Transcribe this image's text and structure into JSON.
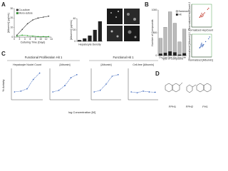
{
  "panel_labels": [
    "A",
    "B",
    "C",
    "D"
  ],
  "chart_data": [
    {
      "type": "line",
      "xlabel": "Culturing Time (Days)",
      "ylabel": "[Albumin] (μg/mL)",
      "x": [
        1,
        3,
        5,
        7,
        9,
        11,
        13
      ],
      "xlim": [
        0,
        14
      ],
      "xticks": [
        0,
        2,
        4,
        6,
        8,
        10,
        12,
        14
      ],
      "ylim": [
        0,
        30
      ],
      "yticks": [
        0,
        10,
        20,
        30
      ],
      "series": [
        {
          "name": "Co-culture",
          "color": "#333333",
          "values": [
            2,
            8,
            14,
            18,
            20,
            21,
            22
          ]
        },
        {
          "name": "Mono-culture",
          "color": "#2ca02c",
          "values": [
            1,
            2,
            1.5,
            1,
            0.5,
            0.5,
            0.5
          ]
        }
      ]
    },
    {
      "type": "bar",
      "xlabel": "Hepatocyte Density",
      "ylabel": "[Albumin] (μg/mL)",
      "categories": [
        null,
        null,
        null,
        null,
        null
      ],
      "values": [
        2,
        5,
        10,
        20,
        35
      ],
      "color": "#222222",
      "ylim": [
        0,
        40
      ],
      "yticks": [
        0,
        20,
        40
      ]
    },
    {
      "type": "bar",
      "xlabel": "Type of Compound",
      "ylabel": "Number of Compounds",
      "categories": [
        "Chr",
        "Com",
        "Dive",
        "Kin",
        "Kno",
        "Nat"
      ],
      "series": [
        {
          "name": "Screened",
          "color": "#bbbbbb",
          "values": [
            380,
            620,
            960,
            710,
            300,
            580
          ]
        },
        {
          "name": "Hit",
          "color": "#222222",
          "values": [
            40,
            60,
            90,
            70,
            20,
            50
          ]
        }
      ],
      "ylim": [
        0,
        1000
      ],
      "yticks": [
        0,
        500,
        1000
      ]
    },
    {
      "type": "scatter",
      "xlabel": "Normalized HepCount 1",
      "ylabel": "Normalized HepCount 2",
      "x": [
        0.9,
        1.0,
        1.1,
        0.95,
        1.05,
        0.85,
        1.2,
        1.0,
        0.8,
        1.15,
        1.3,
        1.6,
        1.7
      ],
      "values": [
        1.0,
        0.9,
        1.1,
        1.05,
        0.95,
        0.9,
        1.15,
        1.2,
        0.85,
        1.0,
        1.25,
        1.55,
        1.65
      ],
      "color": "#c0392b",
      "xlim": [
        0,
        2
      ],
      "ylim": [
        0,
        2
      ]
    },
    {
      "type": "scatter",
      "xlabel": "Normalized [Albumin] 1",
      "ylabel": "Normalized [Albumin] 2",
      "x": [
        0.9,
        1.0,
        1.1,
        0.95,
        1.05,
        0.85,
        1.2,
        1.0,
        0.8,
        1.15,
        1.4,
        1.7,
        1.8
      ],
      "values": [
        0.95,
        1.0,
        1.05,
        1.1,
        0.9,
        0.85,
        1.1,
        1.2,
        0.8,
        1.0,
        1.35,
        1.6,
        1.75
      ],
      "color": "#2e5cb8",
      "xlim": [
        0,
        2
      ],
      "ylim": [
        0,
        2
      ]
    },
    {
      "type": "line",
      "title": "Hepatocyte Nuclei Count",
      "x": [
        -9,
        -8,
        -7,
        -6,
        -5
      ],
      "xlim": [
        -9.5,
        -4.5
      ],
      "values": [
        0,
        5,
        20,
        80,
        120
      ],
      "color": "#2e5cb8",
      "ylim": [
        -50,
        150
      ]
    },
    {
      "type": "line",
      "title": "[Albumin]",
      "x": [
        -9,
        -8,
        -7,
        -6,
        -5
      ],
      "xlim": [
        -9.5,
        -4.5
      ],
      "values": [
        0,
        10,
        40,
        90,
        110
      ],
      "color": "#2e5cb8",
      "ylim": [
        -50,
        150
      ]
    },
    {
      "type": "line",
      "title": "[Albumin]",
      "x": [
        -9,
        -8,
        -7,
        -6,
        -5
      ],
      "xlim": [
        -9.5,
        -4.5
      ],
      "values": [
        0,
        10,
        50,
        100,
        110
      ],
      "color": "#2e5cb8",
      "ylim": [
        -50,
        150
      ]
    },
    {
      "type": "line",
      "title": "Cell-free [Albumin]",
      "x": [
        -9,
        -8,
        -7,
        -6,
        -5
      ],
      "xlim": [
        -9.5,
        -4.5
      ],
      "values": [
        0,
        -5,
        5,
        0,
        -2
      ],
      "color": "#2e5cb8",
      "ylim": [
        -50,
        150
      ]
    }
  ],
  "panel_c": {
    "group_titles": [
      "Functional Proliferation Hit 1",
      "Functional Hit 1"
    ],
    "ylabel": "% Activity",
    "xlabel": "log Concentration [M]"
  },
  "structures": [
    "FPH1",
    "FPH2",
    "FH1"
  ]
}
